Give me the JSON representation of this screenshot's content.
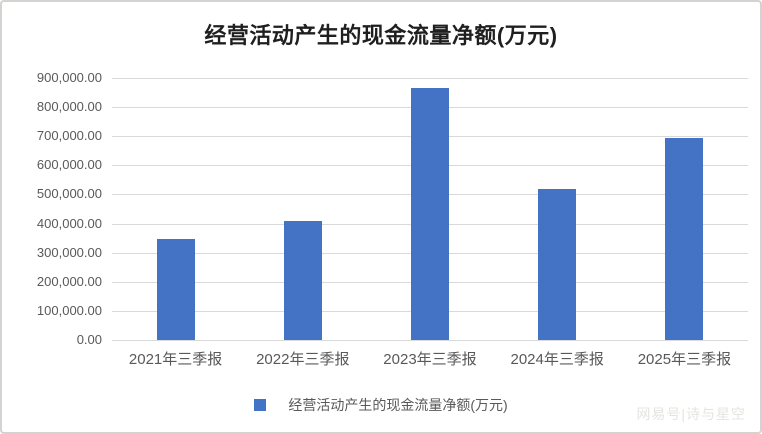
{
  "chart_data": {
    "type": "bar",
    "title": "经营活动产生的现金流量净额(万元)",
    "series_name": "经营活动产生的现金流量净额(万元)",
    "categories": [
      "2021年三季报",
      "2022年三季报",
      "2023年三季报",
      "2024年三季报",
      "2025年三季报"
    ],
    "values": [
      347000,
      410000,
      865000,
      520000,
      695000
    ],
    "xlabel": "",
    "ylabel": "",
    "ylim": [
      0,
      900000
    ],
    "y_tick_step": 100000,
    "y_tick_labels": [
      "0.00",
      "100,000.00",
      "200,000.00",
      "300,000.00",
      "400,000.00",
      "500,000.00",
      "600,000.00",
      "700,000.00",
      "800,000.00",
      "900,000.00"
    ],
    "grid": true,
    "legend_position": "bottom"
  },
  "colors": {
    "bar": "#4472c4",
    "gridline": "#d9d9d9",
    "axis_text": "#595959",
    "title_text": "#1f1f1f",
    "watermark_text": "#e6e4df"
  },
  "watermark": "网易号|诗与星空"
}
